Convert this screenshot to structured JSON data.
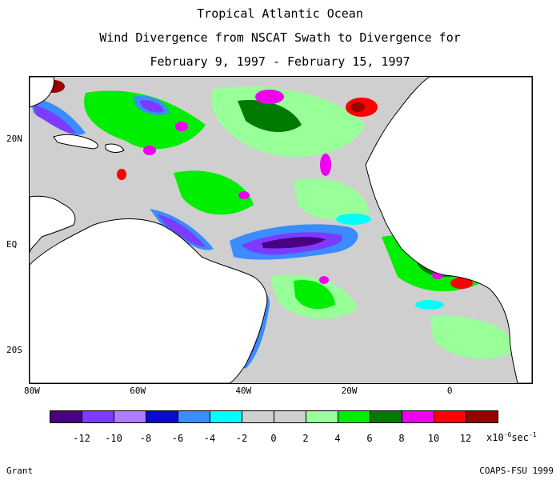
{
  "header": {
    "title": "Tropical Atlantic Ocean",
    "subtitle": "Wind Divergence from NSCAT Swath to Divergence for",
    "dates": "February 9, 1997 - February 15, 1997"
  },
  "map": {
    "lon_range": [
      -80,
      15
    ],
    "lat_range": [
      -26,
      32
    ],
    "x_ticks": [
      {
        "label": "80W",
        "lon": -80
      },
      {
        "label": "60W",
        "lon": -60
      },
      {
        "label": "40W",
        "lon": -40
      },
      {
        "label": "20W",
        "lon": -20
      },
      {
        "label": "0",
        "lon": 0
      }
    ],
    "y_ticks": [
      {
        "label": "20N",
        "lat": 20
      },
      {
        "label": "EQ",
        "lat": 0
      },
      {
        "label": "20S",
        "lat": -20
      }
    ]
  },
  "colorbar": {
    "colors": [
      "#4b0082",
      "#7b3cff",
      "#b07cff",
      "#0a0ad0",
      "#3a8cff",
      "#00ffff",
      "#cfcfcf",
      "#cfcfcf",
      "#99ff99",
      "#00ee00",
      "#007a00",
      "#ee00ee",
      "#ff0000",
      "#990000"
    ],
    "labels": [
      "-12",
      "-10",
      "-8",
      "-6",
      "-4",
      "-2",
      "0",
      "2",
      "4",
      "6",
      "8",
      "10",
      "12"
    ],
    "unit_prefix": "x10",
    "unit_exp": "-6",
    "unit_suffix": "sec",
    "unit_suffix_exp": "-1"
  },
  "footer": {
    "left": "Grant",
    "right": "COAPS-FSU 1999"
  }
}
